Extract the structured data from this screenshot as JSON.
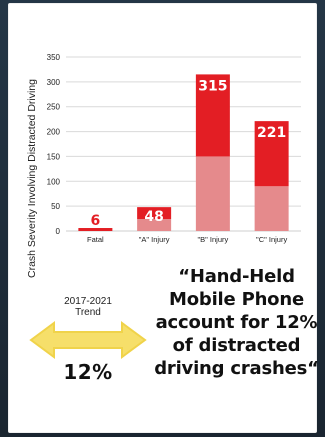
{
  "chart_data": {
    "type": "bar",
    "title": "",
    "xlabel": "",
    "ylabel": "Crash Severity Involving Distracted Driving",
    "categories": [
      "Fatal",
      "\"A\" Injury",
      "\"B\" Injury",
      "\"C\" Injury"
    ],
    "values": [
      6,
      48,
      315,
      221
    ],
    "stack_lower_values": [
      0,
      24,
      150,
      90
    ],
    "ylim": [
      0,
      350
    ],
    "yticks": [
      0,
      50,
      100,
      150,
      200,
      250,
      300,
      350
    ],
    "grid": true,
    "data_labels": [
      "6",
      "48",
      "315",
      "221"
    ],
    "colors": {
      "bar_upper": "#e31e24",
      "bar_lower": "#e58a8c",
      "label_text_on_bar": "#ffffff",
      "label_text_small": "#e31e24"
    }
  },
  "trend": {
    "label": "2017-2021\nTrend",
    "percent": "12%"
  },
  "quote": {
    "text": "“Hand-Held Mobile Phone account for 12% of distracted driving crashes“"
  },
  "colors": {
    "background": "#1f2d39",
    "card": "#ffffff",
    "arrow_fill": "#f6df6a",
    "arrow_stroke": "#f0d34a"
  },
  "icons": {
    "arrow": "double-headed-arrow-icon"
  }
}
